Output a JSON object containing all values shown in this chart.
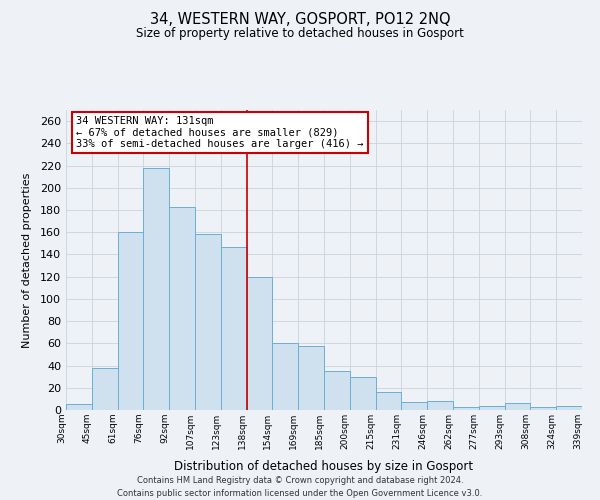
{
  "title": "34, WESTERN WAY, GOSPORT, PO12 2NQ",
  "subtitle": "Size of property relative to detached houses in Gosport",
  "xlabel": "Distribution of detached houses by size in Gosport",
  "ylabel": "Number of detached properties",
  "bar_labels": [
    "30sqm",
    "45sqm",
    "61sqm",
    "76sqm",
    "92sqm",
    "107sqm",
    "123sqm",
    "138sqm",
    "154sqm",
    "169sqm",
    "185sqm",
    "200sqm",
    "215sqm",
    "231sqm",
    "246sqm",
    "262sqm",
    "277sqm",
    "293sqm",
    "308sqm",
    "324sqm",
    "339sqm"
  ],
  "bar_values": [
    5,
    38,
    160,
    218,
    183,
    158,
    147,
    120,
    60,
    58,
    35,
    30,
    16,
    7,
    8,
    3,
    4,
    6,
    3,
    4
  ],
  "bar_color": "#cfe0ef",
  "bar_edge_color": "#6aaed6",
  "ylim": [
    0,
    270
  ],
  "yticks": [
    0,
    20,
    40,
    60,
    80,
    100,
    120,
    140,
    160,
    180,
    200,
    220,
    240,
    260
  ],
  "property_label": "34 WESTERN WAY: 131sqm",
  "annotation_line1": "← 67% of detached houses are smaller (829)",
  "annotation_line2": "33% of semi-detached houses are larger (416) →",
  "annotation_box_color": "#ffffff",
  "annotation_box_edge_color": "#cc0000",
  "red_line_bar_index": 7,
  "footer1": "Contains HM Land Registry data © Crown copyright and database right 2024.",
  "footer2": "Contains public sector information licensed under the Open Government Licence v3.0.",
  "background_color": "#eef2f7",
  "plot_background": "#eef2f7",
  "grid_color": "#c8d4e0"
}
